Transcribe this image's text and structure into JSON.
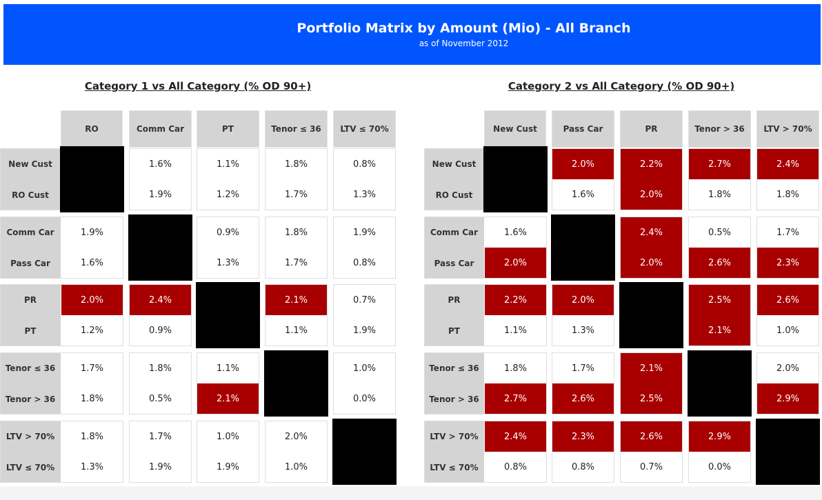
{
  "header": {
    "title": "Portfolio Matrix by Amount (Mio) - All Branch",
    "subtitle": "as of November 2012"
  },
  "colors": {
    "banner": "#0055ff",
    "highlight": "#a80000",
    "diagonal": "#000000",
    "label_bg": "#d4d4d4"
  },
  "chart_data": [
    {
      "type": "table",
      "title": "Category 1 vs All Category (% OD 90+)",
      "columns": [
        "RO",
        "Comm Car",
        "PT",
        "Tenor ≤ 36",
        "LTV ≤ 70%"
      ],
      "groups": [
        [
          {
            "label": "New Cust",
            "values": [
              null,
              "1.6%",
              "1.1%",
              "1.8%",
              "0.8%"
            ],
            "highlight": [
              0,
              0,
              0,
              0,
              0
            ]
          },
          {
            "label": "RO Cust",
            "values": [
              null,
              "1.9%",
              "1.2%",
              "1.7%",
              "1.3%"
            ],
            "highlight": [
              0,
              0,
              0,
              0,
              0
            ]
          }
        ],
        [
          {
            "label": "Comm Car",
            "values": [
              "1.9%",
              null,
              "0.9%",
              "1.8%",
              "1.9%"
            ],
            "highlight": [
              0,
              0,
              0,
              0,
              0
            ]
          },
          {
            "label": "Pass Car",
            "values": [
              "1.6%",
              null,
              "1.3%",
              "1.7%",
              "0.8%"
            ],
            "highlight": [
              0,
              0,
              0,
              0,
              0
            ]
          }
        ],
        [
          {
            "label": "PR",
            "values": [
              "2.0%",
              "2.4%",
              null,
              "2.1%",
              "0.7%"
            ],
            "highlight": [
              1,
              1,
              0,
              1,
              0
            ]
          },
          {
            "label": "PT",
            "values": [
              "1.2%",
              "0.9%",
              null,
              "1.1%",
              "1.9%"
            ],
            "highlight": [
              0,
              0,
              0,
              0,
              0
            ]
          }
        ],
        [
          {
            "label": "Tenor ≤ 36",
            "values": [
              "1.7%",
              "1.8%",
              "1.1%",
              null,
              "1.0%"
            ],
            "highlight": [
              0,
              0,
              0,
              0,
              0
            ]
          },
          {
            "label": "Tenor > 36",
            "values": [
              "1.8%",
              "0.5%",
              "2.1%",
              null,
              "0.0%"
            ],
            "highlight": [
              0,
              0,
              1,
              0,
              0
            ]
          }
        ],
        [
          {
            "label": "LTV > 70%",
            "values": [
              "1.8%",
              "1.7%",
              "1.0%",
              "2.0%",
              null
            ],
            "highlight": [
              0,
              0,
              0,
              0,
              0
            ]
          },
          {
            "label": "LTV ≤ 70%",
            "values": [
              "1.3%",
              "1.9%",
              "1.9%",
              "1.0%",
              null
            ],
            "highlight": [
              0,
              0,
              0,
              0,
              0
            ]
          }
        ]
      ]
    },
    {
      "type": "table",
      "title": "Category 2 vs All Category (% OD 90+)",
      "columns": [
        "New Cust",
        "Pass Car",
        "PR",
        "Tenor > 36",
        "LTV > 70%"
      ],
      "groups": [
        [
          {
            "label": "New Cust",
            "values": [
              null,
              "2.0%",
              "2.2%",
              "2.7%",
              "2.4%"
            ],
            "highlight": [
              0,
              1,
              1,
              1,
              1
            ]
          },
          {
            "label": "RO Cust",
            "values": [
              null,
              "1.6%",
              "2.0%",
              "1.8%",
              "1.8%"
            ],
            "highlight": [
              0,
              0,
              1,
              0,
              0
            ]
          }
        ],
        [
          {
            "label": "Comm Car",
            "values": [
              "1.6%",
              null,
              "2.4%",
              "0.5%",
              "1.7%"
            ],
            "highlight": [
              0,
              0,
              1,
              0,
              0
            ]
          },
          {
            "label": "Pass Car",
            "values": [
              "2.0%",
              null,
              "2.0%",
              "2.6%",
              "2.3%"
            ],
            "highlight": [
              1,
              0,
              1,
              1,
              1
            ]
          }
        ],
        [
          {
            "label": "PR",
            "values": [
              "2.2%",
              "2.0%",
              null,
              "2.5%",
              "2.6%"
            ],
            "highlight": [
              1,
              1,
              0,
              1,
              1
            ]
          },
          {
            "label": "PT",
            "values": [
              "1.1%",
              "1.3%",
              null,
              "2.1%",
              "1.0%"
            ],
            "highlight": [
              0,
              0,
              0,
              1,
              0
            ]
          }
        ],
        [
          {
            "label": "Tenor ≤ 36",
            "values": [
              "1.8%",
              "1.7%",
              "2.1%",
              null,
              "2.0%"
            ],
            "highlight": [
              0,
              0,
              1,
              0,
              0
            ]
          },
          {
            "label": "Tenor > 36",
            "values": [
              "2.7%",
              "2.6%",
              "2.5%",
              null,
              "2.9%"
            ],
            "highlight": [
              1,
              1,
              1,
              0,
              1
            ]
          }
        ],
        [
          {
            "label": "LTV > 70%",
            "values": [
              "2.4%",
              "2.3%",
              "2.6%",
              "2.9%",
              null
            ],
            "highlight": [
              1,
              1,
              1,
              1,
              0
            ]
          },
          {
            "label": "LTV ≤ 70%",
            "values": [
              "0.8%",
              "0.8%",
              "0.7%",
              "0.0%",
              null
            ],
            "highlight": [
              0,
              0,
              0,
              0,
              0
            ]
          }
        ]
      ]
    }
  ]
}
